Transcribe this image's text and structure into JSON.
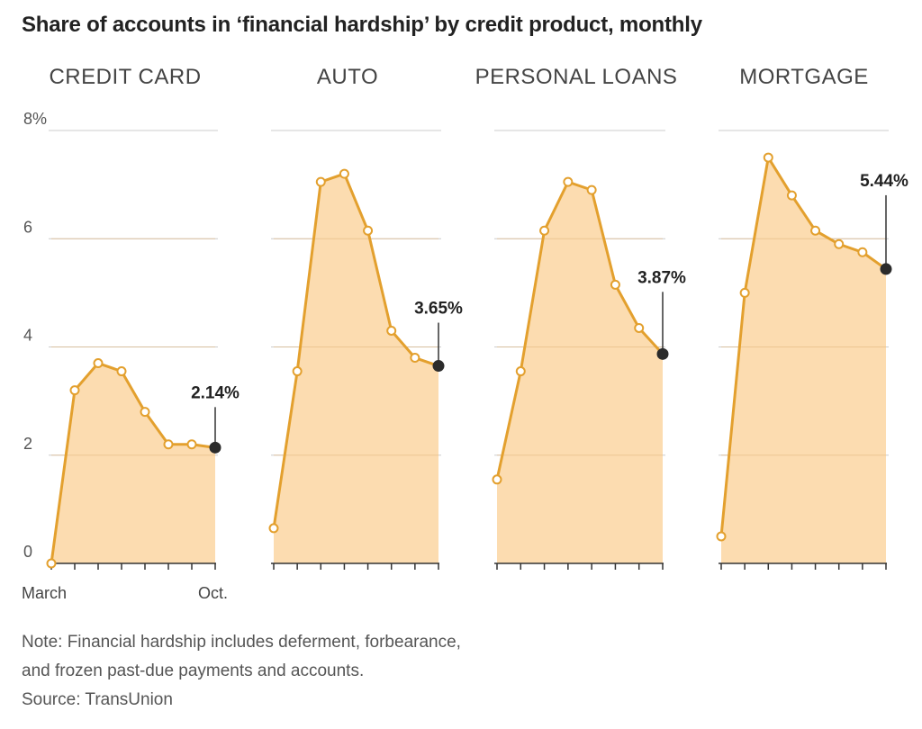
{
  "title": "Share of accounts in ‘financial hardship’ by credit product, monthly",
  "chart_data": {
    "type": "area",
    "y_axis": {
      "ticks": [
        "8%",
        "6",
        "4",
        "2",
        "0"
      ],
      "ylim": [
        0,
        8
      ]
    },
    "x_axis": {
      "start_label": "March",
      "end_label": "Oct."
    },
    "grid": true,
    "colors": {
      "line": "#e3a02e",
      "fill": "#fcdcb0",
      "grid": "#cccccc",
      "end_point": "#2b2b2b"
    },
    "series": [
      {
        "name": "CREDIT CARD",
        "values": [
          0.0,
          3.2,
          3.7,
          3.55,
          2.8,
          2.2,
          2.2,
          2.14
        ],
        "end_label": "2.14%"
      },
      {
        "name": "AUTO",
        "values": [
          0.65,
          3.55,
          7.05,
          7.2,
          6.15,
          4.3,
          3.8,
          3.65
        ],
        "end_label": "3.65%"
      },
      {
        "name": "PERSONAL LOANS",
        "values": [
          1.55,
          3.55,
          6.15,
          7.05,
          6.9,
          5.15,
          4.35,
          3.87
        ],
        "end_label": "3.87%"
      },
      {
        "name": "MORTGAGE",
        "values": [
          0.5,
          5.0,
          7.5,
          6.8,
          6.15,
          5.9,
          5.75,
          5.44
        ],
        "end_label": "5.44%"
      }
    ]
  },
  "notes": {
    "line1": "Note: Financial hardship includes deferment, forbearance,",
    "line2": "and frozen past-due payments and accounts.",
    "source": "Source: TransUnion"
  }
}
